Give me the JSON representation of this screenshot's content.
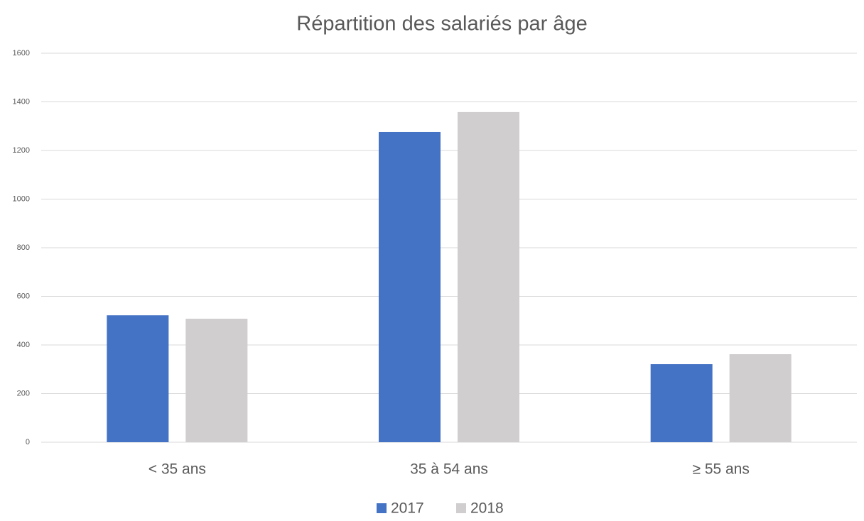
{
  "chart_data": {
    "type": "bar",
    "title": "Répartition des salariés par âge",
    "categories": [
      "< 35 ans",
      "35 à 54 ans",
      "≥ 55 ans"
    ],
    "series": [
      {
        "name": "2017",
        "color": "#4472c4",
        "values": [
          522,
          1276,
          321
        ]
      },
      {
        "name": "2018",
        "color": "#d0cece",
        "values": [
          508,
          1358,
          362
        ]
      }
    ],
    "ylim": [
      0,
      1600
    ],
    "yticks": [
      0,
      200,
      400,
      600,
      800,
      1000,
      1200,
      1400,
      1600
    ],
    "grid": true,
    "legend": "bottom"
  }
}
